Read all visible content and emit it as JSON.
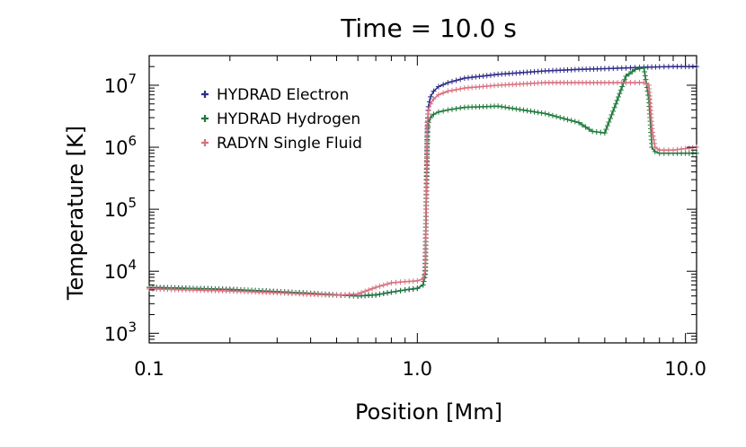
{
  "chart_data": {
    "type": "line",
    "title": "Time = 10.0 s",
    "xlabel": "Position [Mm]",
    "ylabel": "Temperature [K]",
    "x_scale": "log",
    "y_scale": "log",
    "xlim": [
      0.1,
      11.0
    ],
    "ylim": [
      700,
      30000000
    ],
    "x_ticks": [
      {
        "value": 0.1,
        "label": "0.1"
      },
      {
        "value": 1.0,
        "label": "1.0"
      },
      {
        "value": 10.0,
        "label": "10.0"
      }
    ],
    "y_ticks": [
      {
        "value": 1000,
        "base": "10",
        "exp": "3"
      },
      {
        "value": 10000,
        "base": "10",
        "exp": "4"
      },
      {
        "value": 100000,
        "base": "10",
        "exp": "5"
      },
      {
        "value": 1000000,
        "base": "10",
        "exp": "6"
      },
      {
        "value": 10000000,
        "base": "10",
        "exp": "7"
      }
    ],
    "grid": false,
    "legend_position": "top-left",
    "series": [
      {
        "name": "HYDRAD Electron",
        "color": "#2e2e8a",
        "x": [
          0.1,
          0.2,
          0.3,
          0.4,
          0.5,
          0.6,
          0.7,
          0.8,
          0.9,
          1.0,
          1.05,
          1.07,
          1.08,
          1.09,
          1.1,
          1.12,
          1.15,
          1.2,
          1.3,
          1.5,
          2.0,
          3.0,
          4.0,
          5.0,
          6.0,
          7.0,
          8.0,
          9.0,
          10.0,
          11.0
        ],
        "y": [
          5500,
          5100,
          4700,
          4400,
          4150,
          4000,
          4150,
          4600,
          5000,
          5300,
          6000,
          9000,
          150000,
          2000000,
          4500000,
          6500000,
          8000000,
          9500000,
          11000000,
          13000000,
          15000000,
          17000000,
          18000000,
          18500000,
          19000000,
          19500000,
          19800000,
          20000000,
          20000000,
          20000000
        ]
      },
      {
        "name": "HYDRAD Hydrogen",
        "color": "#1e7a3a",
        "x": [
          0.1,
          0.2,
          0.3,
          0.4,
          0.5,
          0.6,
          0.7,
          0.8,
          0.9,
          1.0,
          1.05,
          1.07,
          1.08,
          1.09,
          1.1,
          1.12,
          1.15,
          1.2,
          1.3,
          1.5,
          2.0,
          3.0,
          4.0,
          4.5,
          5.0,
          5.5,
          6.0,
          6.5,
          7.0,
          7.3,
          7.5,
          7.7,
          8.0,
          9.0,
          10.0,
          11.0
        ],
        "y": [
          5500,
          5100,
          4700,
          4400,
          4150,
          4000,
          4150,
          4600,
          5000,
          5300,
          6000,
          9000,
          150000,
          1500000,
          2500000,
          3000000,
          3400000,
          3700000,
          4000000,
          4400000,
          4600000,
          3500000,
          2500000,
          1800000,
          1700000,
          5000000,
          14000000,
          18000000,
          19000000,
          6000000,
          1000000,
          850000,
          800000,
          800000,
          800000,
          800000
        ]
      },
      {
        "name": "RADYN Single Fluid",
        "color": "#d87080",
        "x": [
          0.1,
          0.2,
          0.3,
          0.4,
          0.5,
          0.6,
          0.7,
          0.8,
          0.9,
          1.0,
          1.05,
          1.07,
          1.08,
          1.09,
          1.1,
          1.12,
          1.15,
          1.2,
          1.3,
          1.5,
          2.0,
          3.0,
          4.0,
          5.0,
          6.0,
          7.0,
          7.3,
          7.5,
          7.7,
          8.0,
          9.0,
          10.0,
          11.0
        ],
        "y": [
          5200,
          4800,
          4500,
          4250,
          4100,
          4300,
          5500,
          6500,
          6800,
          7000,
          7500,
          10000,
          200000,
          2500000,
          4000000,
          5000000,
          6000000,
          7000000,
          8000000,
          9000000,
          10000000,
          11000000,
          11000000,
          11000000,
          11000000,
          11000000,
          10000000,
          2000000,
          1000000,
          900000,
          900000,
          950000,
          1000000
        ]
      }
    ]
  }
}
